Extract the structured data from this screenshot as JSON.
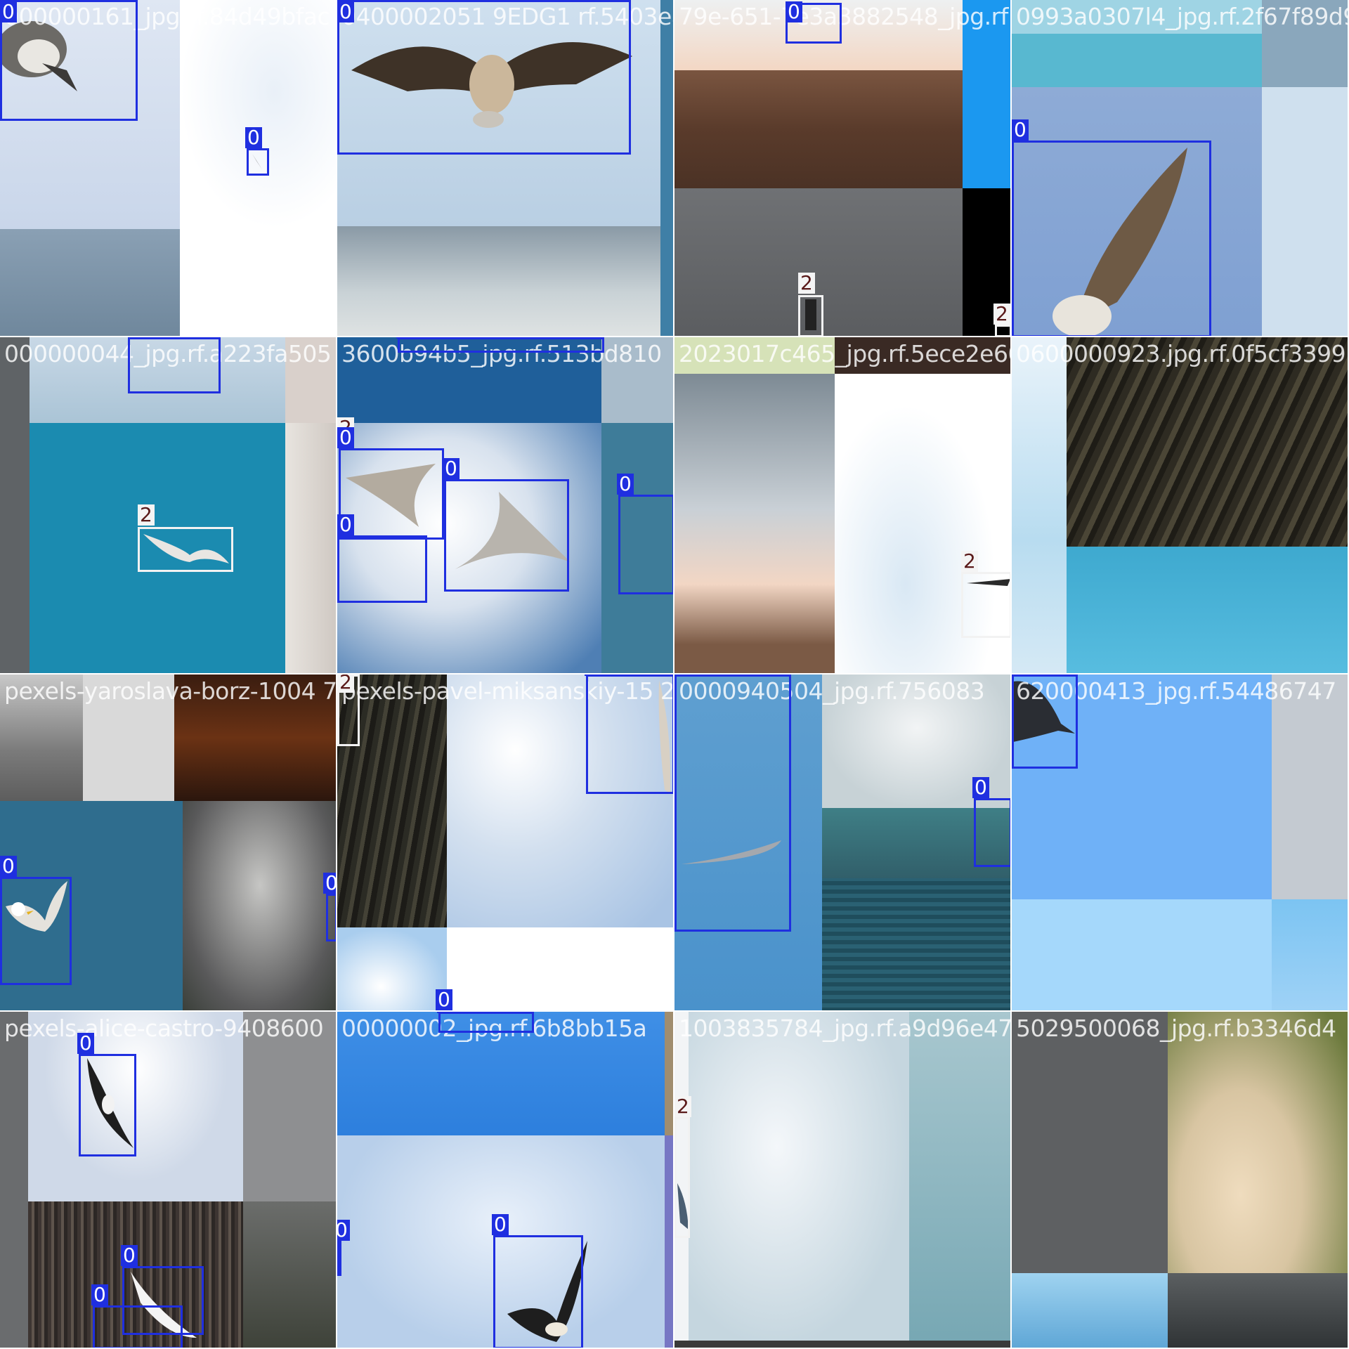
{
  "mosaic": {
    "tiles": [
      {
        "name": "0000001",
        "filename": "000000161_jpg.rf.84d49bfac",
        "labels": [
          "0",
          "0"
        ]
      },
      {
        "name": "0000002",
        "filename": "0400002051 9EDG1 rf.5403eaec",
        "labels": [
          "0"
        ]
      },
      {
        "name": "0000003",
        "filename": "79e-651-7e3a3882548_jpg.rf",
        "labels": [
          "0",
          "2",
          "2"
        ]
      },
      {
        "name": "0000004",
        "filename": "0993a0307l4_jpg.rf.2f67f89d9",
        "labels": [
          "0"
        ]
      },
      {
        "name": "0000005",
        "filename": "000000044_jpg.rf.a223fa505",
        "labels": [
          "0",
          "2"
        ]
      },
      {
        "name": "0000006",
        "filename": "3600b94b5_jpg.rf.513bd810",
        "labels": [
          "0",
          "2",
          "0",
          "0",
          "0",
          "0"
        ]
      },
      {
        "name": "0000007",
        "filename": "2023017c465_jpg.rf.5ece2e60",
        "labels": [
          "2"
        ]
      },
      {
        "name": "0000008",
        "filename": "0600000923.jpg.rf.0f5cf3399",
        "labels": []
      },
      {
        "name": "0000009",
        "filename": "pexels-yaroslava-borz-1004 788_jpg.rf",
        "labels": [
          "0",
          "0"
        ]
      },
      {
        "name": "0000010",
        "filename": "pexels-pavel-miksanskiy-15 2688",
        "labels": [
          "2",
          "0",
          "0"
        ]
      },
      {
        "name": "0000011",
        "filename": "0000940504_jpg.rf.756083",
        "labels": [
          "0",
          "0"
        ]
      },
      {
        "name": "0000012",
        "filename": "620000413_jpg.rf.54486747",
        "labels": [
          "0"
        ]
      },
      {
        "name": "0000013",
        "filename": "pexels-alice-castro-9408600",
        "labels": [
          "0",
          "0",
          "0"
        ]
      },
      {
        "name": "0000014",
        "filename": "00000002_jpg.rf.6b8bb15a",
        "labels": [
          "0",
          "0",
          "0"
        ]
      },
      {
        "name": "0000015",
        "filename": "1003835784_jpg.rf.a9d96e47",
        "labels": [
          "2"
        ]
      },
      {
        "name": "0000016",
        "filename": "5029500068_jpg.rf.b3346d4",
        "labels": []
      }
    ]
  },
  "colors": {
    "class_0_box": "#1f2fe0",
    "class_2_box": "#f2f2f2",
    "class_2_label_text": "#5a1a1a"
  }
}
